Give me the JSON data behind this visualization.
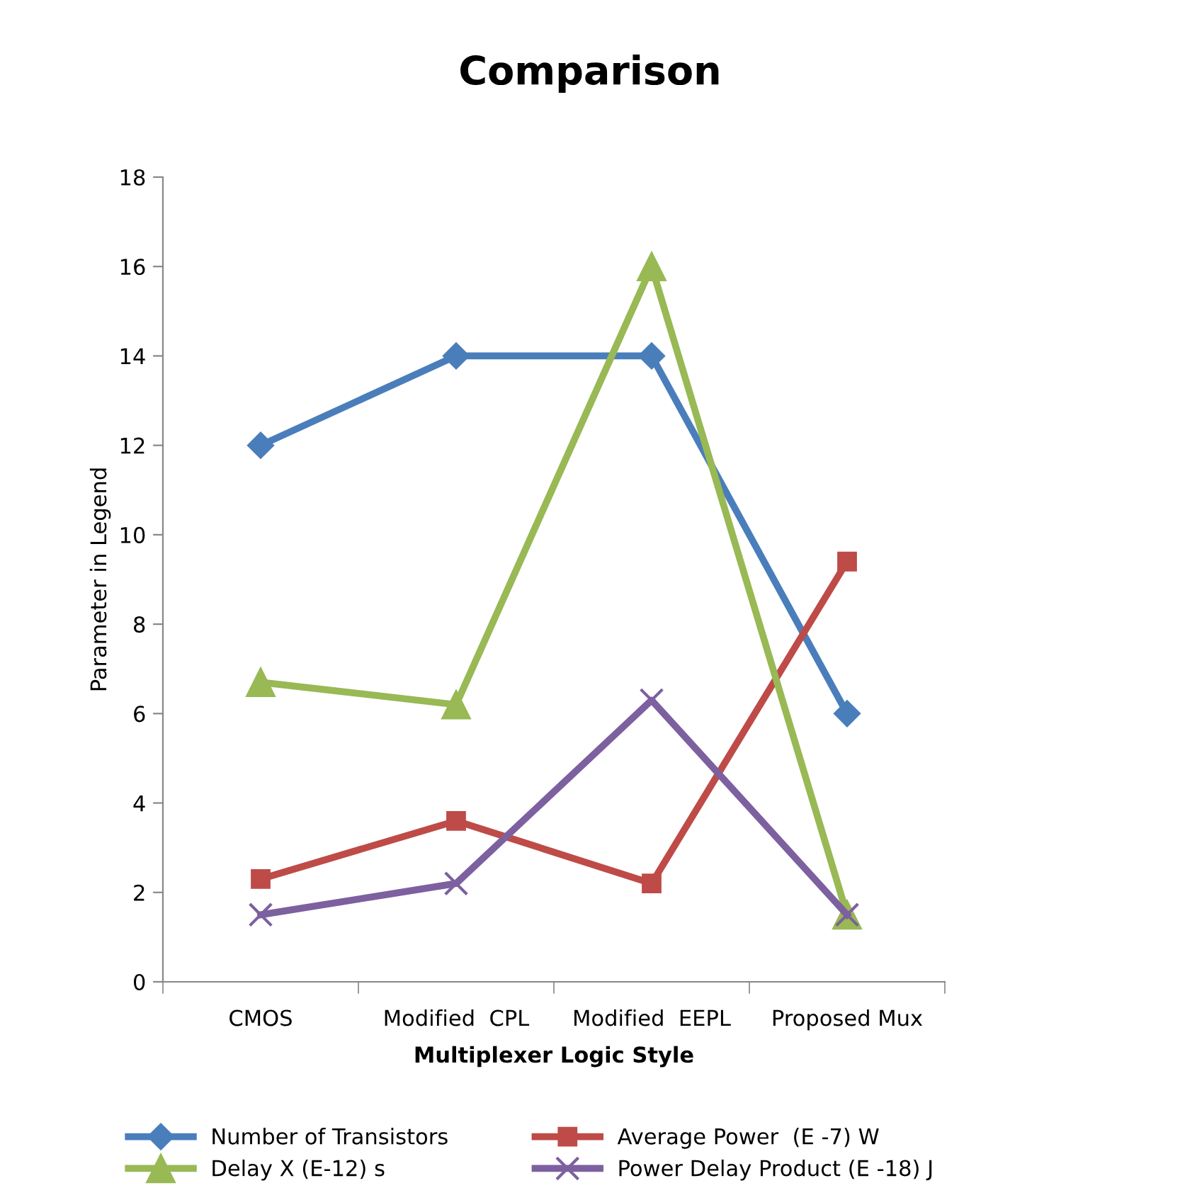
{
  "chart_data": {
    "type": "line",
    "title": "Comparison",
    "xlabel": "Multiplexer Logic Style",
    "ylabel": "Parameter in Legend",
    "categories": [
      "CMOS",
      "Modified  CPL",
      "Modified  EEPL",
      "Proposed Mux"
    ],
    "series": [
      {
        "name": "Number of Transistors",
        "color": "#4a7ebb",
        "marker": "diamond",
        "values": [
          12,
          14,
          14,
          6
        ]
      },
      {
        "name": "Average Power  (E -7) W",
        "color": "#be4b48",
        "marker": "square",
        "values": [
          2.3,
          3.6,
          2.2,
          9.4
        ]
      },
      {
        "name": "Delay X (E-12) s",
        "color": "#98b954",
        "marker": "triangle",
        "values": [
          6.7,
          6.2,
          16,
          1.5
        ]
      },
      {
        "name": "Power Delay Product (E -18) J",
        "color": "#7d60a0",
        "marker": "cross",
        "values": [
          1.5,
          2.2,
          6.3,
          1.5
        ]
      }
    ],
    "ylim": [
      0,
      18
    ],
    "yticks": [
      0,
      2,
      4,
      6,
      8,
      10,
      12,
      14,
      16,
      18
    ],
    "grid": false,
    "legend": "bottom",
    "line_style": "solid"
  }
}
